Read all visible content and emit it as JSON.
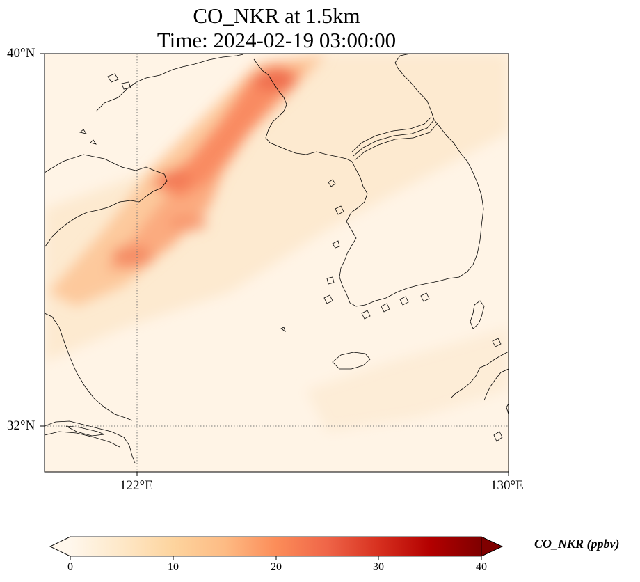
{
  "title_line1": "CO_NKR at 1.5km",
  "title_line2": "Time: 2024-02-19 03:00:00",
  "lat_ticks": [
    "40°N",
    "32°N"
  ],
  "lon_ticks": [
    "122°E",
    "130°E"
  ],
  "colorbar": {
    "label": "CO_NKR (ppbv)",
    "ticks": [
      "0",
      "10",
      "20",
      "30",
      "40"
    ],
    "min": 0,
    "max": 40,
    "colormap": "OrRd",
    "extend": "both"
  },
  "map_extent": {
    "lon": [
      120,
      130
    ],
    "lat": [
      31,
      40
    ]
  },
  "gridlines": {
    "lon": [
      122,
      130
    ],
    "lat": [
      32,
      40
    ],
    "style": "dotted"
  },
  "colors": {
    "background_low": "#fff7ec",
    "plume": "#f4845f",
    "coastline": "#000000",
    "colormap_stops": [
      "#fff7ec",
      "#fee8c8",
      "#fdd49e",
      "#fdbb84",
      "#fc8d59",
      "#ef6548",
      "#d7301f",
      "#b30000",
      "#7f0000"
    ]
  }
}
